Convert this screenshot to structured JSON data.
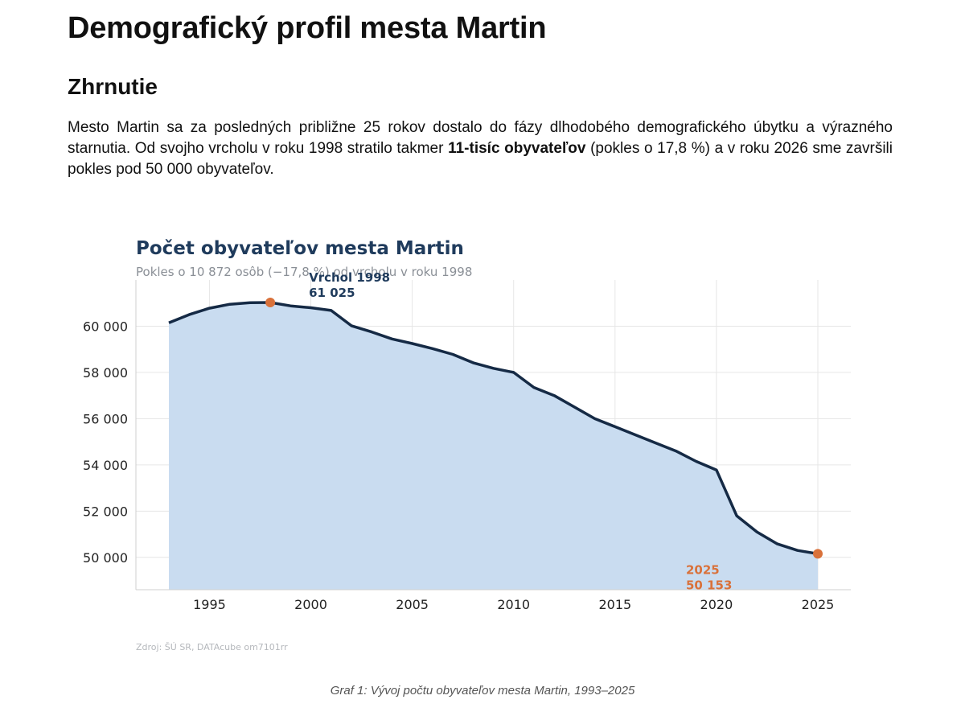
{
  "document": {
    "title": "Demografický profil mesta Martin",
    "section_heading": "Zhrnutie",
    "summary": {
      "part1": "Mesto Martin sa za posledných približne 25 rokov dostalo do fázy dlhodobého demografického úbytku a výrazného starnutia. Od svojho vrcholu v roku 1998 stratilo takmer ",
      "bold": "11-tisíc obyvateľov",
      "part2": " (pokles o 17,8 %) a v roku 2026 sme završili pokles pod 50 000 obyvateľov."
    },
    "caption": "Graf 1: Vývoj počtu obyvateľov mesta Martin, 1993–2025"
  },
  "chart_data": {
    "type": "area",
    "title": "Počet obyvateľov mesta Martin",
    "subtitle": "Pokles o 10 872 osôb (−17,8 %) od vrcholu v roku 1998",
    "source": "Zdroj: ŠÚ SR, DATAcube om7101rr",
    "x": [
      1993,
      1994,
      1995,
      1996,
      1997,
      1998,
      1999,
      2000,
      2001,
      2002,
      2003,
      2004,
      2005,
      2006,
      2007,
      2008,
      2009,
      2010,
      2011,
      2012,
      2013,
      2014,
      2015,
      2016,
      2017,
      2018,
      2019,
      2020,
      2021,
      2022,
      2023,
      2024,
      2025
    ],
    "y": [
      60150,
      60500,
      60780,
      60950,
      61020,
      61025,
      60880,
      60800,
      60680,
      60020,
      59750,
      59450,
      59250,
      59030,
      58780,
      58420,
      58180,
      58000,
      57350,
      57000,
      56500,
      56000,
      55650,
      55300,
      54950,
      54600,
      54150,
      53780,
      51800,
      51100,
      50580,
      50300,
      50153
    ],
    "xlim": [
      1993,
      2025
    ],
    "ylim": [
      48600,
      62000
    ],
    "x_ticks": [
      {
        "value": 1995,
        "label": "1995"
      },
      {
        "value": 2000,
        "label": "2000"
      },
      {
        "value": 2005,
        "label": "2005"
      },
      {
        "value": 2010,
        "label": "2010"
      },
      {
        "value": 2015,
        "label": "2015"
      },
      {
        "value": 2020,
        "label": "2020"
      },
      {
        "value": 2025,
        "label": "2025"
      }
    ],
    "y_ticks": [
      {
        "value": 50000,
        "label": "50 000"
      },
      {
        "value": 52000,
        "label": "52 000"
      },
      {
        "value": 54000,
        "label": "54 000"
      },
      {
        "value": 56000,
        "label": "56 000"
      },
      {
        "value": 58000,
        "label": "58 000"
      },
      {
        "value": 60000,
        "label": "60 000"
      }
    ],
    "grid": true,
    "annotations": [
      {
        "x": 1998,
        "y": 61025,
        "line1": "Vrchol 1998",
        "line2": "61 025",
        "kind": "peak"
      },
      {
        "x": 2025,
        "y": 50153,
        "line1": "2025",
        "line2": "50 153",
        "kind": "end"
      }
    ],
    "colors": {
      "line": "#152a45",
      "fill": "#c9dcf0",
      "marker": "#d9713a"
    }
  }
}
